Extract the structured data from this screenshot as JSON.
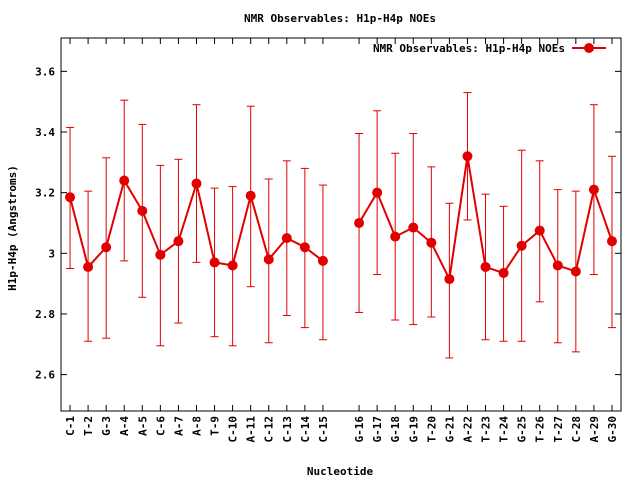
{
  "chart_data": {
    "type": "line",
    "title": "NMR Observables: H1p-H4p NOEs",
    "xlabel": "Nucleotide",
    "ylabel": "H1p-H4p (Angstroms)",
    "ylim": [
      2.48,
      3.71
    ],
    "yticks": [
      "2.6",
      "2.8",
      "3",
      "3.2",
      "3.4",
      "3.6"
    ],
    "grid": false,
    "legend_position": "top-right",
    "color": "#e00000",
    "categories": [
      "C-1",
      "T-2",
      "G-3",
      "A-4",
      "A-5",
      "C-6",
      "A-7",
      "A-8",
      "T-9",
      "C-10",
      "A-11",
      "C-12",
      "C-13",
      "C-14",
      "C-15",
      "",
      "G-16",
      "G-17",
      "G-18",
      "G-19",
      "T-20",
      "G-21",
      "A-22",
      "T-23",
      "T-24",
      "G-25",
      "T-26",
      "T-27",
      "C-28",
      "A-29",
      "G-30"
    ],
    "series": [
      {
        "name": "NMR Observables: H1p-H4p NOEs",
        "values": [
          3.185,
          2.955,
          3.02,
          3.24,
          3.14,
          2.995,
          3.04,
          3.23,
          2.97,
          2.96,
          3.19,
          2.98,
          3.05,
          3.02,
          2.975,
          null,
          3.1,
          3.2,
          3.055,
          3.085,
          3.035,
          2.915,
          3.32,
          2.955,
          2.935,
          3.025,
          3.075,
          2.96,
          2.94,
          3.21,
          3.04
        ],
        "err_high": [
          3.415,
          3.205,
          3.315,
          3.505,
          3.425,
          3.29,
          3.31,
          3.49,
          3.215,
          3.22,
          3.485,
          3.245,
          3.305,
          3.28,
          3.225,
          null,
          3.395,
          3.47,
          3.33,
          3.395,
          3.285,
          3.165,
          3.53,
          3.195,
          3.155,
          3.34,
          3.305,
          3.21,
          3.205,
          3.49,
          3.32
        ],
        "err_low": [
          2.95,
          2.71,
          2.72,
          2.975,
          2.855,
          2.695,
          2.77,
          2.97,
          2.725,
          2.695,
          2.89,
          2.705,
          2.795,
          2.755,
          2.715,
          null,
          2.805,
          2.93,
          2.78,
          2.765,
          2.79,
          2.655,
          3.11,
          2.715,
          2.71,
          2.71,
          2.84,
          2.705,
          2.675,
          2.93,
          2.755
        ]
      }
    ]
  }
}
